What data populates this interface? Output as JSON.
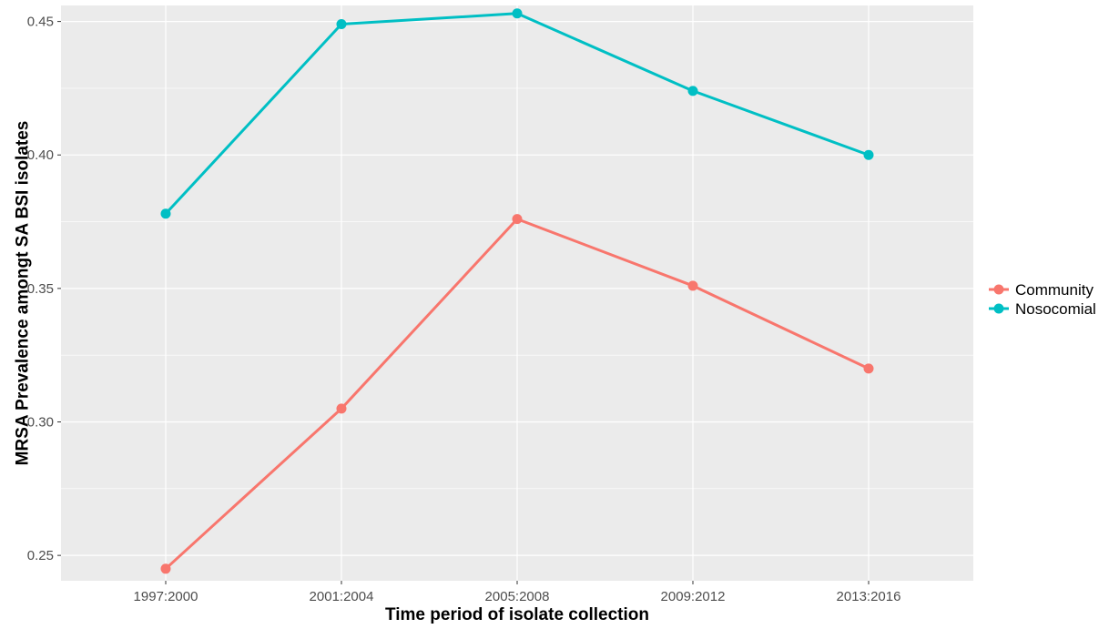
{
  "chart_data": {
    "type": "line",
    "title": "",
    "xlabel": "Time period of isolate collection",
    "ylabel": "MRSA Prevalence amongt SA BSI isolates",
    "categories": [
      "1997:2000",
      "2001:2004",
      "2005:2008",
      "2009:2012",
      "2013:2016"
    ],
    "yticks": [
      "0.25",
      "0.30",
      "0.35",
      "0.40",
      "0.45"
    ],
    "ylim": [
      0.2405,
      0.456
    ],
    "grid": true,
    "legend_position": "right",
    "series": [
      {
        "name": "Community",
        "color": "#F8766D",
        "values": [
          0.245,
          0.305,
          0.376,
          0.351,
          0.32
        ]
      },
      {
        "name": "Nosocomial",
        "color": "#00BFC4",
        "values": [
          0.378,
          0.449,
          0.453,
          0.424,
          0.4
        ]
      }
    ]
  }
}
